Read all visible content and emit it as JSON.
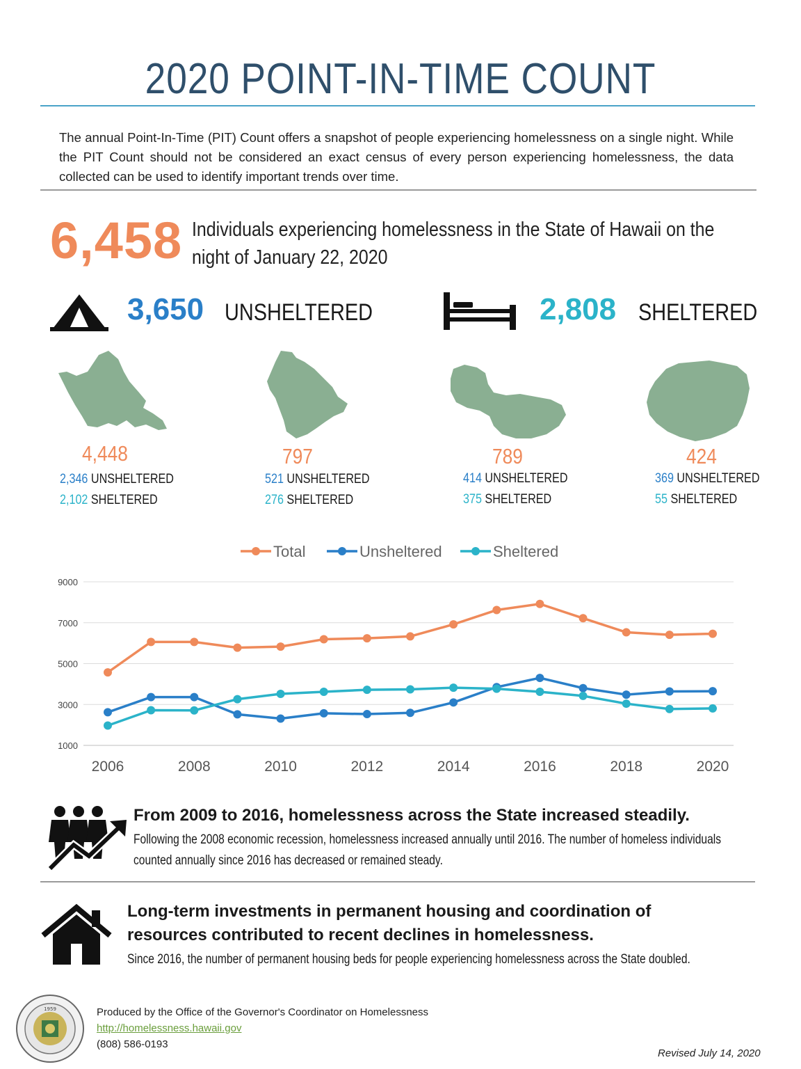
{
  "title": "2020 POINT-IN-TIME COUNT",
  "intro": "The annual Point-In-Time (PIT) Count offers a snapshot of people experiencing homelessness on a single night. While the PIT Count should not be considered an exact census of every person experiencing homelessness, the data collected can be used to identify important trends over time.",
  "headline": {
    "total": "6,458",
    "description": "Individuals experiencing homelessness in the State of Hawaii on the night of January 22, 2020"
  },
  "summary": {
    "unsheltered_number": "3,650",
    "unsheltered_label": "UNSHELTERED",
    "sheltered_number": "2,808",
    "sheltered_label": "SHELTERED"
  },
  "colors": {
    "accent_orange": "#ef8a5a",
    "unsheltered_blue": "#2a7fc8",
    "sheltered_cyan": "#2bb3c9",
    "island_green": "#8aaf92",
    "title_navy": "#2f4f6b"
  },
  "islands": [
    {
      "total": "4,448",
      "unsheltered_num": "2,346",
      "unsheltered_label": "UNSHELTERED",
      "sheltered_num": "2,102",
      "sheltered_label": "SHELTERED"
    },
    {
      "total": "797",
      "unsheltered_num": "521",
      "unsheltered_label": "UNSHELTERED",
      "sheltered_num": "276",
      "sheltered_label": "SHELTERED"
    },
    {
      "total": "789",
      "unsheltered_num": "414",
      "unsheltered_label": "UNSHELTERED",
      "sheltered_num": "375",
      "sheltered_label": "SHELTERED"
    },
    {
      "total": "424",
      "unsheltered_num": "369",
      "unsheltered_label": "UNSHELTERED",
      "sheltered_num": "55",
      "sheltered_label": "SHELTERED"
    }
  ],
  "chart_data": {
    "type": "line",
    "title": "",
    "xlabel": "",
    "ylabel": "",
    "x": [
      2006,
      2007,
      2008,
      2009,
      2010,
      2011,
      2012,
      2013,
      2014,
      2015,
      2016,
      2017,
      2018,
      2019,
      2020
    ],
    "x_ticks": [
      "2006",
      "2008",
      "2010",
      "2012",
      "2014",
      "2016",
      "2018",
      "2020"
    ],
    "y_ticks": [
      "1000",
      "3000",
      "5000",
      "7000",
      "9000"
    ],
    "ylim": [
      1000,
      9000
    ],
    "grid": true,
    "legend_position": "top",
    "series": [
      {
        "name": "Total",
        "color": "#ef8a5a",
        "values": [
          4570,
          6060,
          6060,
          5780,
          5830,
          6190,
          6240,
          6330,
          6920,
          7620,
          7920,
          7220,
          6530,
          6410,
          6460
        ]
      },
      {
        "name": "Unsheltered",
        "color": "#2a7fc8",
        "values": [
          2620,
          3360,
          3360,
          2520,
          2310,
          2570,
          2530,
          2590,
          3100,
          3850,
          4300,
          3800,
          3480,
          3640,
          3650
        ]
      },
      {
        "name": "Sheltered",
        "color": "#2bb3c9",
        "values": [
          1970,
          2720,
          2710,
          3260,
          3520,
          3620,
          3720,
          3740,
          3820,
          3770,
          3620,
          3420,
          3040,
          2780,
          2810
        ]
      }
    ]
  },
  "trend1": {
    "heading": "From 2009 to 2016, homelessness across the State increased steadily.",
    "body": "Following the 2008 economic recession, homelessness increased annually until 2016. The number of homeless individuals counted annually since 2016 has decreased or remained steady."
  },
  "trend2": {
    "heading_line1": "Long-term investments in permanent housing and coordination of",
    "heading_line2": "resources contributed to recent declines in homelessness.",
    "body": "Since 2016, the number of permanent housing beds for people experiencing homelessness across the State doubled."
  },
  "footer": {
    "seal_year": "1959",
    "producer": "Produced by the Office of the Governor's Coordinator on Homelessness",
    "link": "http://homelessness.hawaii.gov",
    "phone": "(808) 586-0193",
    "revised": "Revised July 14, 2020"
  }
}
